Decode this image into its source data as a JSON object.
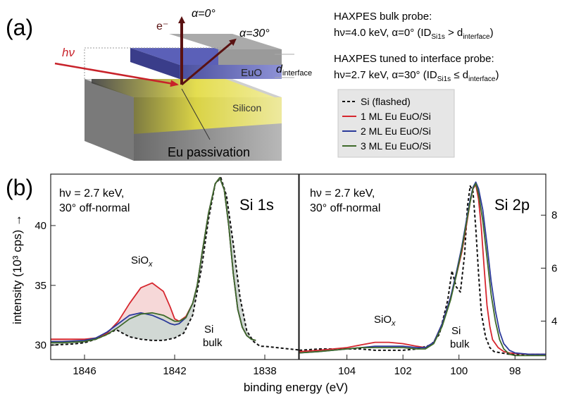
{
  "panel_a": {
    "label": "(a)",
    "hv": "hν",
    "electron": "e⁻",
    "alpha0": "α=0°",
    "alpha30": "α=30°",
    "d_interface": "d",
    "d_interface_sub": "interface",
    "euo": "EuO",
    "silicon": "Silicon",
    "eu_passivation": "Eu passivation",
    "bulk_title": "HAXPES bulk probe:",
    "bulk_line": "hν=4.0 keV, α=0° (ID",
    "bulk_sub1": "Si1s",
    "bulk_mid": " > d",
    "bulk_sub2": "interface",
    "bulk_end": ")",
    "iface_title": "HAXPES tuned to interface probe:",
    "iface_line": "hν=2.7 keV, α=30° (ID",
    "iface_sub1": "Si1s",
    "iface_mid": " ≤ d",
    "iface_sub2": "interface",
    "iface_end": ")"
  },
  "legend": {
    "entries": [
      "Si (flashed)",
      "1 ML Eu EuO/Si",
      "2 ML Eu EuO/Si",
      "3 ML Eu EuO/Si"
    ],
    "colors": [
      "#111111",
      "#d6262e",
      "#2b3a9a",
      "#3f6a2a"
    ]
  },
  "panel_b_label": "(b)",
  "chart_data": [
    {
      "type": "line",
      "title": "Si 1s",
      "annotation_top_1": "hν = 2.7 keV,",
      "annotation_top_2": "30° off-normal",
      "label_siox": "SiO",
      "label_siox_sub": "x",
      "label_si": "Si",
      "label_bulk": "bulk",
      "xlabel": "binding energy (eV)",
      "ylabel": "intensity (10³ cps) →",
      "xlim": [
        1847.5,
        1836.5
      ],
      "ylim": [
        28.8,
        44.3
      ],
      "xticks": [
        1846,
        1842,
        1838
      ],
      "yticks": [
        30,
        35,
        40
      ],
      "series": [
        {
          "name": "Si (flashed)",
          "x": [
            1847.5,
            1846.5,
            1846,
            1845.5,
            1845,
            1844.6,
            1844.3,
            1844,
            1843.5,
            1843,
            1842.5,
            1842,
            1841.6,
            1841.2,
            1840.8,
            1840.5,
            1840.2,
            1839.95,
            1839.7,
            1839.4,
            1839.1,
            1838.8,
            1838.5,
            1838.2,
            1838,
            1837.5,
            1837,
            1836.5
          ],
          "y": [
            30.0,
            30.1,
            30.2,
            30.5,
            30.9,
            31.3,
            31.0,
            30.7,
            30.5,
            30.4,
            30.4,
            30.6,
            31.0,
            32.5,
            36.5,
            40.5,
            43.5,
            44.0,
            42.5,
            38.5,
            34.0,
            31.2,
            30.3,
            29.9,
            29.9,
            29.8,
            29.7,
            29.6
          ]
        },
        {
          "name": "1 ML Eu EuO/Si",
          "x": [
            1847.5,
            1847,
            1846,
            1845.5,
            1845,
            1844.5,
            1844,
            1843.5,
            1843,
            1842.5,
            1842.2,
            1842,
            1841.8,
            1841.5,
            1841.2,
            1841,
            1840.8,
            1840.5,
            1840.2,
            1840,
            1839.8,
            1839.6,
            1839.4,
            1839.2,
            1839,
            1838.8,
            1838.6,
            1838.4
          ],
          "y": [
            30.5,
            30.5,
            30.5,
            30.6,
            31.0,
            32.0,
            33.5,
            34.8,
            35.2,
            34.5,
            33.2,
            32.2,
            32.0,
            32.4,
            33.5,
            35.0,
            37.5,
            41.0,
            43.5,
            44.0,
            43.0,
            40.0,
            36.0,
            33.0,
            31.5,
            30.8,
            30.5,
            30.4
          ]
        },
        {
          "name": "2 ML Eu EuO/Si",
          "x": [
            1847.5,
            1847,
            1846,
            1845.5,
            1845,
            1844.5,
            1844,
            1843.5,
            1843,
            1842.5,
            1842.2,
            1842,
            1841.8,
            1841.5,
            1841.2,
            1841,
            1840.8,
            1840.5,
            1840.2,
            1840,
            1839.8,
            1839.6,
            1839.4,
            1839.2,
            1839,
            1838.8,
            1838.6,
            1838.4
          ],
          "y": [
            30.3,
            30.3,
            30.4,
            30.6,
            31.1,
            31.8,
            32.5,
            32.7,
            32.5,
            32.1,
            31.8,
            31.7,
            31.8,
            32.3,
            33.5,
            35.0,
            37.5,
            41.0,
            43.5,
            44.0,
            43.0,
            40.0,
            36.0,
            33.0,
            31.5,
            30.8,
            30.5,
            30.4
          ]
        },
        {
          "name": "3 ML Eu EuO/Si",
          "x": [
            1847.5,
            1847,
            1846,
            1845.5,
            1845,
            1844.5,
            1844,
            1843.5,
            1843,
            1842.5,
            1842.2,
            1842,
            1841.8,
            1841.5,
            1841.2,
            1841,
            1840.8,
            1840.5,
            1840.2,
            1840,
            1839.8,
            1839.6,
            1839.4,
            1839.2,
            1839,
            1838.8,
            1838.6,
            1838.4
          ],
          "y": [
            30.2,
            30.2,
            30.3,
            30.5,
            30.9,
            31.5,
            32.2,
            32.6,
            32.7,
            32.5,
            32.2,
            32.0,
            32.0,
            32.3,
            33.5,
            35.0,
            37.5,
            41.0,
            43.5,
            44.0,
            43.0,
            40.0,
            36.0,
            33.0,
            31.5,
            30.8,
            30.5,
            30.4
          ]
        }
      ]
    },
    {
      "type": "line",
      "title": "Si 2p",
      "annotation_top_1": "hν = 2.7 keV,",
      "annotation_top_2": "30° off-normal",
      "label_siox": "SiO",
      "label_siox_sub": "x",
      "label_si": "Si",
      "label_bulk": "bulk",
      "xlim": [
        105.7,
        96.9
      ],
      "ylim": [
        2.55,
        9.55
      ],
      "xticks": [
        104,
        102,
        100,
        98
      ],
      "yticks": [
        4,
        6,
        8
      ],
      "series": [
        {
          "name": "Si (flashed)",
          "x": [
            105.7,
            105,
            104.5,
            104,
            103.5,
            103,
            102.5,
            102,
            101.5,
            101,
            100.7,
            100.4,
            100.25,
            100.1,
            99.95,
            99.8,
            99.7,
            99.6,
            99.5,
            99.4,
            99.3,
            99.2,
            99.05,
            98.9,
            98.75,
            98.5,
            98.2,
            98,
            97.5,
            97,
            96.9
          ],
          "y": [
            2.9,
            2.95,
            2.95,
            2.95,
            2.95,
            2.9,
            2.9,
            2.9,
            2.95,
            3.1,
            3.5,
            4.8,
            5.9,
            5.3,
            5.1,
            6.5,
            8.3,
            9.1,
            8.9,
            7.5,
            5.8,
            4.3,
            3.4,
            3.0,
            2.85,
            2.8,
            2.75,
            2.75,
            2.75,
            2.75,
            2.75
          ]
        },
        {
          "name": "1 ML Eu EuO/Si",
          "x": [
            105.7,
            105,
            104.5,
            104,
            103.5,
            103,
            102.5,
            102,
            101.5,
            101.2,
            100.9,
            100.6,
            100.3,
            100.1,
            99.9,
            99.75,
            99.6,
            99.5,
            99.4,
            99.3,
            99.2,
            99.1,
            99,
            98.9,
            98.8,
            98.6,
            98.4,
            98.2,
            98,
            97.5,
            96.9
          ],
          "y": [
            2.85,
            2.9,
            2.95,
            3.0,
            3.1,
            3.2,
            3.2,
            3.15,
            3.05,
            3.0,
            3.2,
            3.9,
            4.9,
            5.7,
            6.6,
            7.5,
            8.5,
            9.0,
            9.15,
            8.6,
            7.5,
            6.0,
            4.6,
            3.8,
            3.3,
            3.0,
            2.85,
            2.8,
            2.78,
            2.75,
            2.75
          ]
        },
        {
          "name": "2 ML Eu EuO/Si",
          "x": [
            105.7,
            105,
            104.5,
            104,
            103.5,
            103,
            102.5,
            102,
            101.5,
            101.2,
            100.9,
            100.6,
            100.3,
            100.1,
            99.9,
            99.75,
            99.6,
            99.5,
            99.4,
            99.3,
            99.15,
            99,
            98.85,
            98.7,
            98.55,
            98.4,
            98.2,
            98,
            97.5,
            96.9
          ],
          "y": [
            2.8,
            2.85,
            2.9,
            2.95,
            3.0,
            3.05,
            3.05,
            3.05,
            3.0,
            3.0,
            3.2,
            3.9,
            4.9,
            5.8,
            6.8,
            7.7,
            8.6,
            9.05,
            9.25,
            9.0,
            8.2,
            6.9,
            5.5,
            4.4,
            3.6,
            3.15,
            2.9,
            2.8,
            2.75,
            2.75
          ]
        },
        {
          "name": "3 ML Eu EuO/Si",
          "x": [
            105.7,
            105,
            104.5,
            104,
            103.5,
            103,
            102.5,
            102,
            101.5,
            101.2,
            100.9,
            100.6,
            100.3,
            100.1,
            99.9,
            99.75,
            99.6,
            99.5,
            99.4,
            99.3,
            99.15,
            99,
            98.85,
            98.7,
            98.55,
            98.4,
            98.2,
            98,
            97.5,
            96.9
          ],
          "y": [
            2.8,
            2.85,
            2.9,
            2.95,
            3.0,
            3.0,
            3.0,
            3.0,
            2.95,
            2.95,
            3.15,
            3.8,
            4.8,
            5.7,
            6.7,
            7.6,
            8.5,
            9.0,
            9.2,
            8.8,
            7.8,
            6.4,
            5.0,
            4.0,
            3.3,
            2.95,
            2.75,
            2.7,
            2.7,
            2.7
          ]
        }
      ]
    }
  ]
}
